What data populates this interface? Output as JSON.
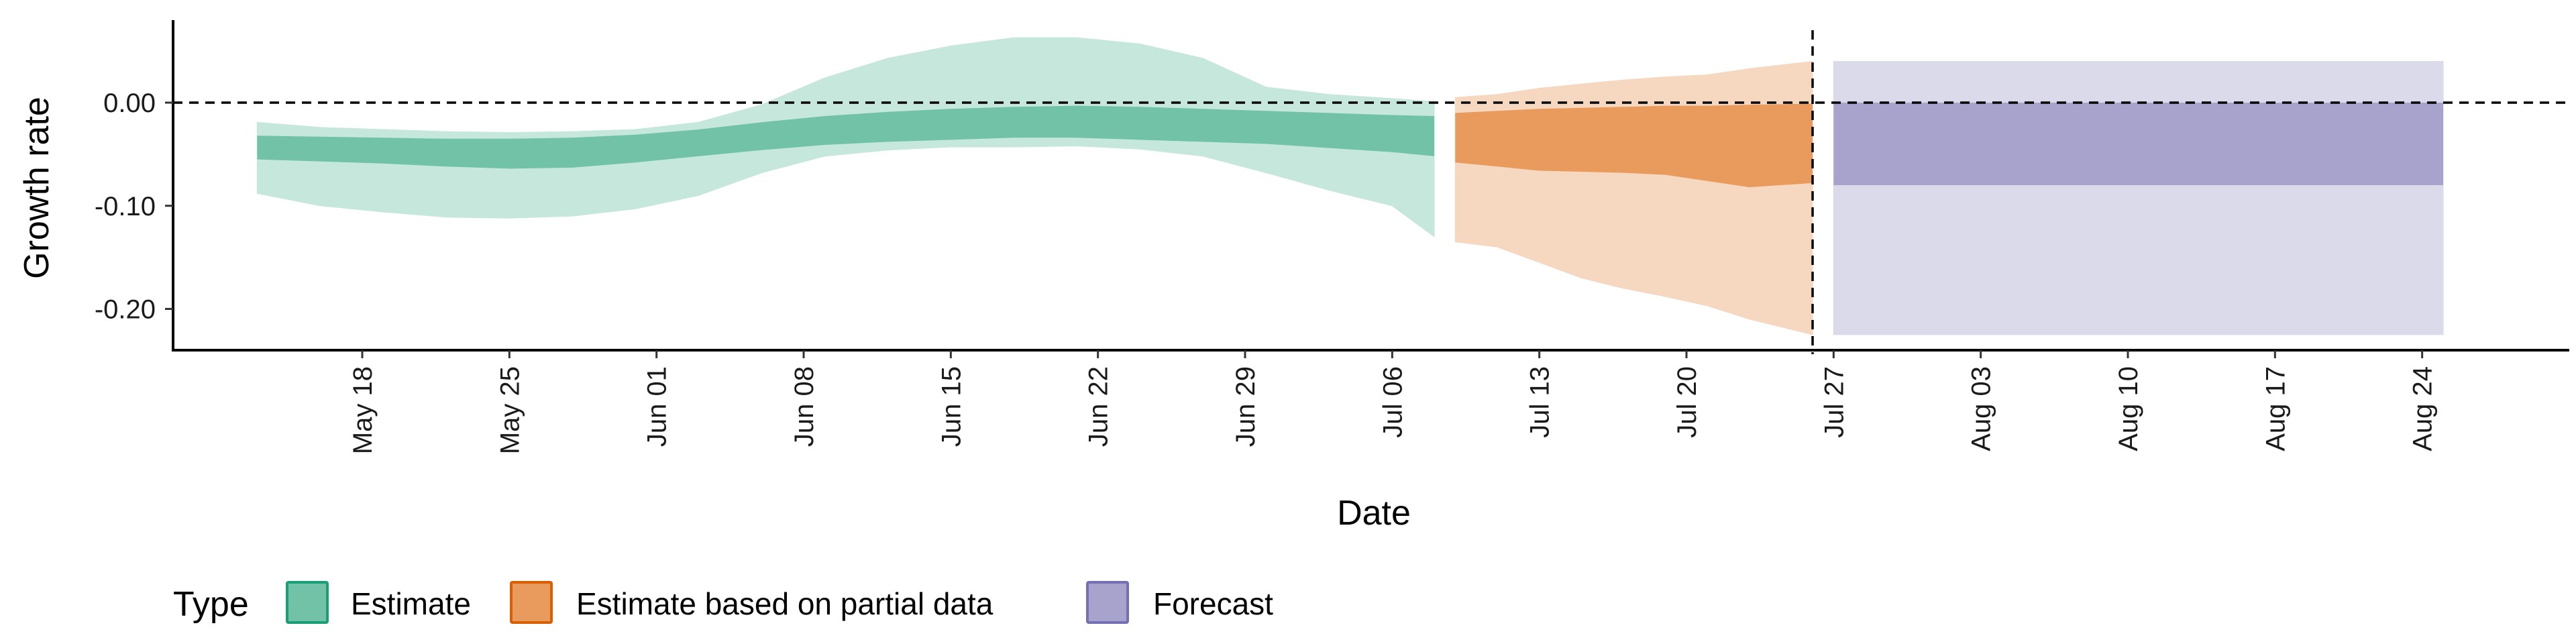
{
  "chart_data": {
    "type": "area",
    "title": "",
    "xlabel": "Date",
    "ylabel": "Growth rate",
    "ylim": [
      -0.24,
      0.08
    ],
    "xlim": [
      "2020-05-09",
      "2020-08-31"
    ],
    "x_ticks": [
      {
        "date": "2020-05-18",
        "label": "May 18"
      },
      {
        "date": "2020-05-25",
        "label": "May 25"
      },
      {
        "date": "2020-06-01",
        "label": "Jun 01"
      },
      {
        "date": "2020-06-08",
        "label": "Jun 08"
      },
      {
        "date": "2020-06-15",
        "label": "Jun 15"
      },
      {
        "date": "2020-06-22",
        "label": "Jun 22"
      },
      {
        "date": "2020-06-29",
        "label": "Jun 29"
      },
      {
        "date": "2020-07-06",
        "label": "Jul 06"
      },
      {
        "date": "2020-07-13",
        "label": "Jul 13"
      },
      {
        "date": "2020-07-20",
        "label": "Jul 20"
      },
      {
        "date": "2020-07-27",
        "label": "Jul 27"
      },
      {
        "date": "2020-08-03",
        "label": "Aug 03"
      },
      {
        "date": "2020-08-10",
        "label": "Aug 10"
      },
      {
        "date": "2020-08-17",
        "label": "Aug 17"
      },
      {
        "date": "2020-08-24",
        "label": "Aug 24"
      }
    ],
    "y_ticks": [
      {
        "value": 0.0,
        "label": "0.00"
      },
      {
        "value": -0.1,
        "label": "-0.10"
      },
      {
        "value": -0.2,
        "label": "-0.20"
      }
    ],
    "reference_lines": {
      "horizontal_y": 0.0,
      "vertical_date": "2020-07-26",
      "style": "dashed"
    },
    "legend": {
      "title": "Type",
      "position": "bottom-left"
    },
    "series": [
      {
        "name": "Estimate",
        "color_inner": "#71c2a6",
        "color_outer": "#c6e7dc",
        "color_border": "#1b9e77",
        "x": [
          "2020-05-13",
          "2020-05-16",
          "2020-05-19",
          "2020-05-22",
          "2020-05-25",
          "2020-05-28",
          "2020-05-31",
          "2020-06-03",
          "2020-06-06",
          "2020-06-09",
          "2020-06-12",
          "2020-06-15",
          "2020-06-18",
          "2020-06-21",
          "2020-06-24",
          "2020-06-27",
          "2020-06-30",
          "2020-07-03",
          "2020-07-06",
          "2020-07-08"
        ],
        "inner_lower": [
          -0.055,
          -0.057,
          -0.059,
          -0.062,
          -0.064,
          -0.063,
          -0.058,
          -0.052,
          -0.046,
          -0.041,
          -0.038,
          -0.036,
          -0.034,
          -0.034,
          -0.036,
          -0.038,
          -0.04,
          -0.044,
          -0.048,
          -0.052
        ],
        "inner_upper": [
          -0.032,
          -0.033,
          -0.034,
          -0.035,
          -0.035,
          -0.034,
          -0.031,
          -0.026,
          -0.019,
          -0.013,
          -0.009,
          -0.006,
          -0.004,
          -0.003,
          -0.004,
          -0.006,
          -0.008,
          -0.01,
          -0.012,
          -0.013
        ],
        "outer_lower": [
          -0.088,
          -0.1,
          -0.106,
          -0.111,
          -0.112,
          -0.11,
          -0.103,
          -0.09,
          -0.068,
          -0.052,
          -0.046,
          -0.043,
          -0.043,
          -0.042,
          -0.045,
          -0.052,
          -0.068,
          -0.085,
          -0.1,
          -0.13
        ],
        "outer_upper": [
          -0.019,
          -0.024,
          -0.026,
          -0.028,
          -0.029,
          -0.028,
          -0.026,
          -0.019,
          -0.002,
          0.024,
          0.043,
          0.055,
          0.063,
          0.063,
          0.057,
          0.043,
          0.015,
          0.008,
          0.004,
          0.001
        ]
      },
      {
        "name": "Estimate based on partial data",
        "color_inner": "#e99b5e",
        "color_outer": "#f6d7c0",
        "color_border": "#d95f02",
        "x": [
          "2020-07-09",
          "2020-07-11",
          "2020-07-13",
          "2020-07-15",
          "2020-07-17",
          "2020-07-19",
          "2020-07-21",
          "2020-07-23",
          "2020-07-26"
        ],
        "inner_lower": [
          -0.058,
          -0.062,
          -0.066,
          -0.067,
          -0.068,
          -0.07,
          -0.076,
          -0.082,
          -0.078
        ],
        "inner_upper": [
          -0.01,
          -0.008,
          -0.006,
          -0.005,
          -0.004,
          -0.003,
          -0.003,
          -0.002,
          -0.001
        ],
        "outer_lower": [
          -0.135,
          -0.14,
          -0.155,
          -0.17,
          -0.18,
          -0.188,
          -0.197,
          -0.21,
          -0.225
        ],
        "outer_upper": [
          0.005,
          0.008,
          0.014,
          0.018,
          0.022,
          0.025,
          0.027,
          0.033,
          0.04
        ]
      },
      {
        "name": "Forecast",
        "color_inner": "#a8a3cc",
        "color_outer": "#dbdaeb",
        "color_border": "#7570b3",
        "x": [
          "2020-07-27",
          "2020-08-25"
        ],
        "inner_lower": [
          -0.08,
          -0.08
        ],
        "inner_upper": [
          0.0,
          0.0
        ],
        "outer_lower": [
          -0.225,
          -0.225
        ],
        "outer_upper": [
          0.04,
          0.04
        ]
      }
    ]
  }
}
